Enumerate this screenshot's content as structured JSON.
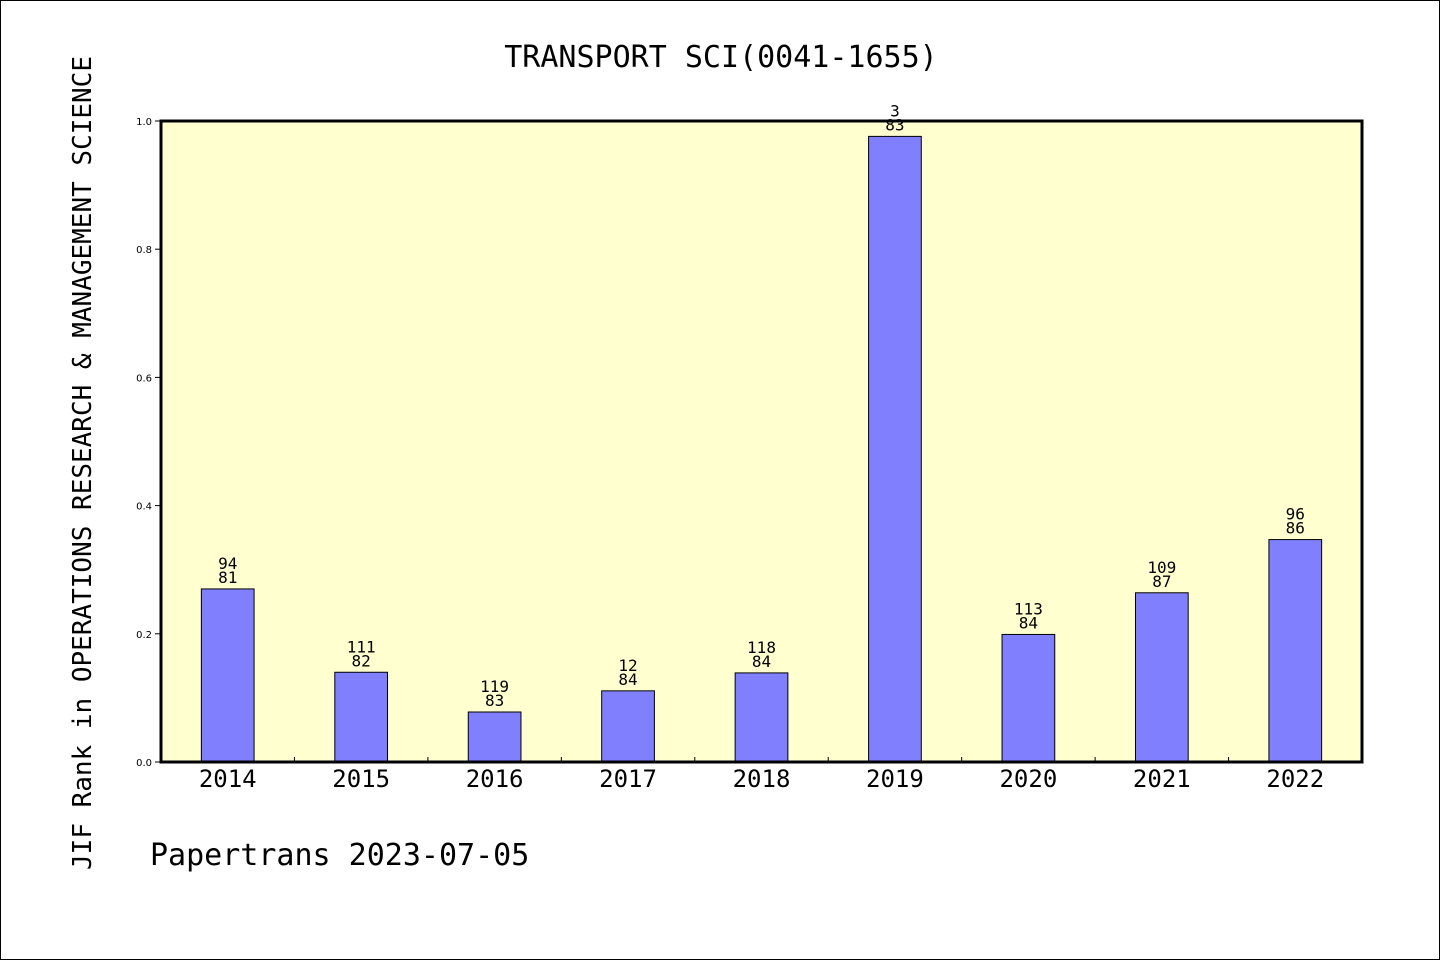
{
  "chart_data": {
    "type": "bar",
    "title": "TRANSPORT SCI(0041-1655)",
    "ylabel": "JIF Rank in OPERATIONS RESEARCH & MANAGEMENT SCIENCE",
    "xlabel": "",
    "ylim": [
      0,
      1.0
    ],
    "yticks": [
      "0.0",
      "0.2",
      "0.4",
      "0.6",
      "0.8",
      "1.0"
    ],
    "categories": [
      "2014",
      "2015",
      "2016",
      "2017",
      "2018",
      "2019",
      "2020",
      "2021",
      "2022"
    ],
    "values": [
      0.27,
      0.14,
      0.078,
      0.111,
      0.139,
      0.976,
      0.199,
      0.264,
      0.347
    ],
    "labels": [
      {
        "rank": "94",
        "total": "81"
      },
      {
        "rank": "111",
        "total": "82"
      },
      {
        "rank": "119",
        "total": "83"
      },
      {
        "rank": "12",
        "total": "84"
      },
      {
        "rank": "118",
        "total": "84"
      },
      {
        "rank": "3",
        "total": "83"
      },
      {
        "rank": "113",
        "total": "84"
      },
      {
        "rank": "109",
        "total": "87"
      },
      {
        "rank": "96",
        "total": "86"
      }
    ],
    "grid": false,
    "colors": {
      "plot_background": "#ffffd0",
      "bar_fill": "#8080ff",
      "bar_stroke": "#000000"
    }
  },
  "footer": "Papertrans 2023-07-05"
}
